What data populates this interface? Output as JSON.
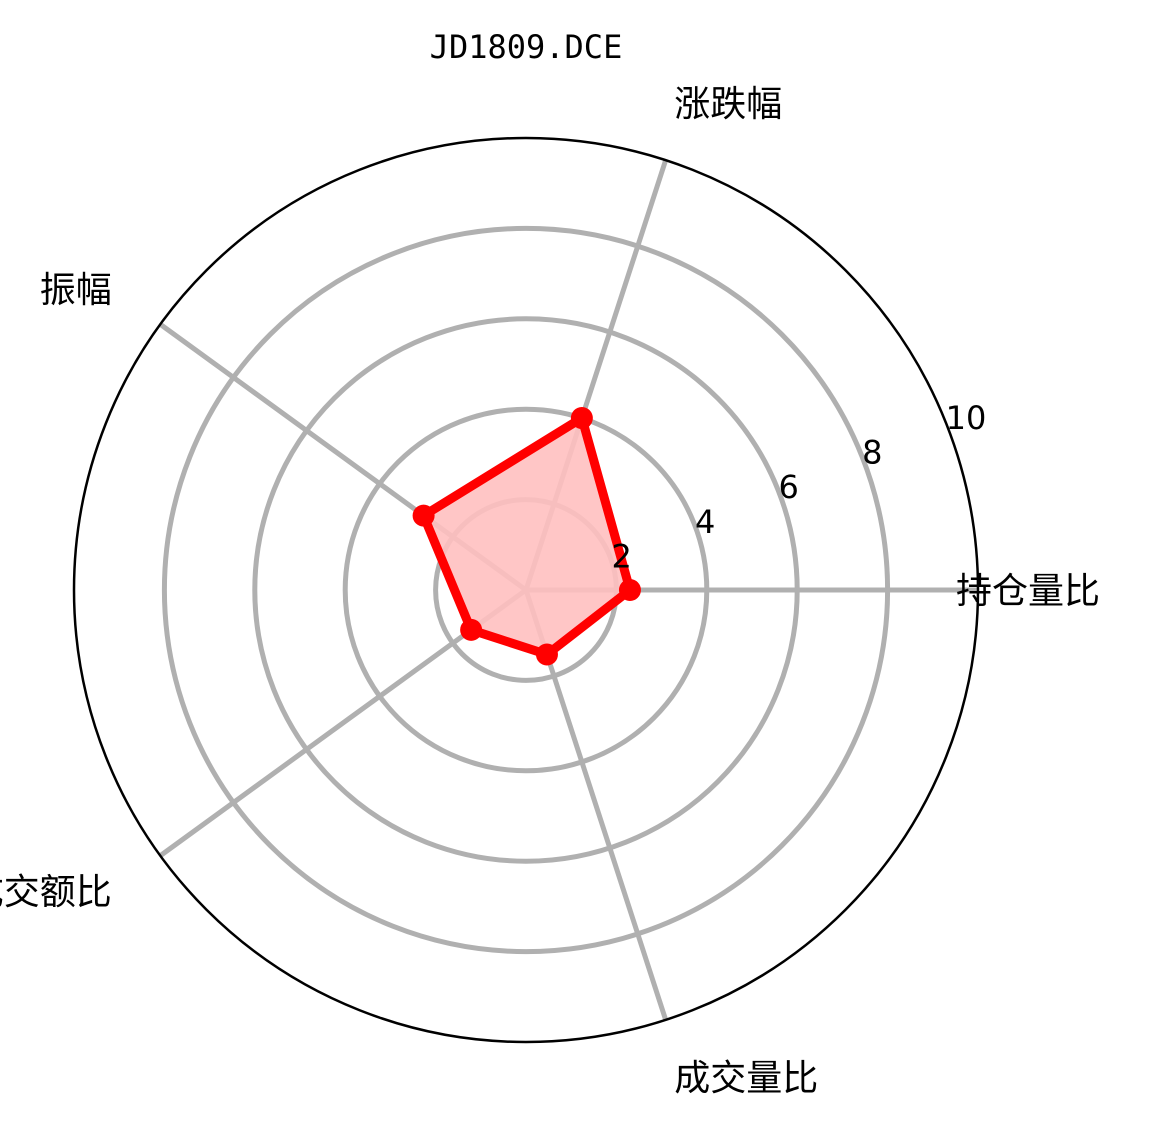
{
  "chart_data": {
    "type": "radar",
    "title": "JD1809.DCE",
    "axes": [
      "持仓量比",
      "涨跌幅",
      "振幅",
      "成交额比",
      "成交量比"
    ],
    "radial_ticks": [
      "2",
      "4",
      "6",
      "8",
      "10"
    ],
    "rlim": [
      0,
      10
    ],
    "grid": true,
    "series": [
      {
        "values": [
          2.3,
          4.0,
          2.8,
          1.5,
          1.5
        ]
      }
    ],
    "colors": {
      "line": "#ff0000",
      "fill": "#ffc0c0",
      "grid": "#b0b0b0",
      "frame": "#000000"
    }
  }
}
